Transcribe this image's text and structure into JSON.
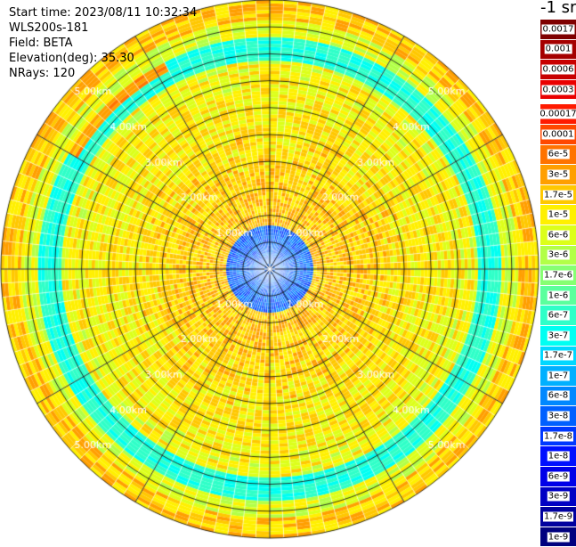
{
  "info": {
    "start_time": "Start time: 2023/08/11 10:32:34",
    "device": "WLS200s-181",
    "field": "Field: BETA",
    "elevation": "Elevation(deg): 35.30",
    "nrays": "NRays: 120"
  },
  "colorbar": {
    "unit": "-1 sr",
    "entries": [
      {
        "label": "0.0017",
        "color": "#7f0000"
      },
      {
        "label": "0.001",
        "color": "#a50000"
      },
      {
        "label": "0.0006",
        "color": "#c80000"
      },
      {
        "label": "0.0003",
        "color": "#ea0000"
      },
      {
        "label": "0.00017",
        "color": "#ff1a00"
      },
      {
        "label": "0.0001",
        "color": "#ff4800"
      },
      {
        "label": "6e-5",
        "color": "#ff7300"
      },
      {
        "label": "3e-5",
        "color": "#ff9f00"
      },
      {
        "label": "1.7e-5",
        "color": "#ffc800"
      },
      {
        "label": "1e-5",
        "color": "#fff000"
      },
      {
        "label": "6e-6",
        "color": "#dcff1a"
      },
      {
        "label": "3e-6",
        "color": "#b2ff47"
      },
      {
        "label": "1.7e-6",
        "color": "#86ff72"
      },
      {
        "label": "1e-6",
        "color": "#5bff9d"
      },
      {
        "label": "6e-7",
        "color": "#2fffc8"
      },
      {
        "label": "3e-7",
        "color": "#00fff2"
      },
      {
        "label": "1.7e-7",
        "color": "#00d8ff"
      },
      {
        "label": "1e-7",
        "color": "#00b0ff"
      },
      {
        "label": "6e-8",
        "color": "#0088ff"
      },
      {
        "label": "3e-8",
        "color": "#0060ff"
      },
      {
        "label": "1.7e-8",
        "color": "#0038ff"
      },
      {
        "label": "1e-8",
        "color": "#0010ff"
      },
      {
        "label": "6e-9",
        "color": "#0000e8"
      },
      {
        "label": "3e-9",
        "color": "#0000c4"
      },
      {
        "label": "1.7e-9",
        "color": "#00009f"
      },
      {
        "label": "1e-9",
        "color": "#00007f"
      }
    ]
  },
  "chart_data": {
    "type": "heatmap",
    "projection": "polar",
    "field": "BETA",
    "n_rays": 120,
    "range_unit": "km",
    "max_range_km": 5.0,
    "range_rings_km": [
      1,
      2,
      3,
      4,
      5
    ],
    "range_ring_labels": [
      "1.00km",
      "2.00km",
      "3.00km",
      "4.00km",
      "5.00km"
    ],
    "diagonal_directions": [
      "NW",
      "NE",
      "SW",
      "SE"
    ],
    "scale": "log",
    "value_range": [
      1e-09,
      0.0017
    ],
    "features": [
      {
        "description": "aerosol shell",
        "range_km": [
          3.9,
          4.3
        ],
        "level": "3e-7"
      },
      {
        "description": "strong echo",
        "range_km": [
          4.1,
          4.3
        ],
        "azimuth_deg": [
          300,
          330
        ],
        "level": "3e-5"
      },
      {
        "description": "weak near field",
        "range_km": [
          0.0,
          0.8
        ],
        "level": "3e-8"
      }
    ]
  }
}
